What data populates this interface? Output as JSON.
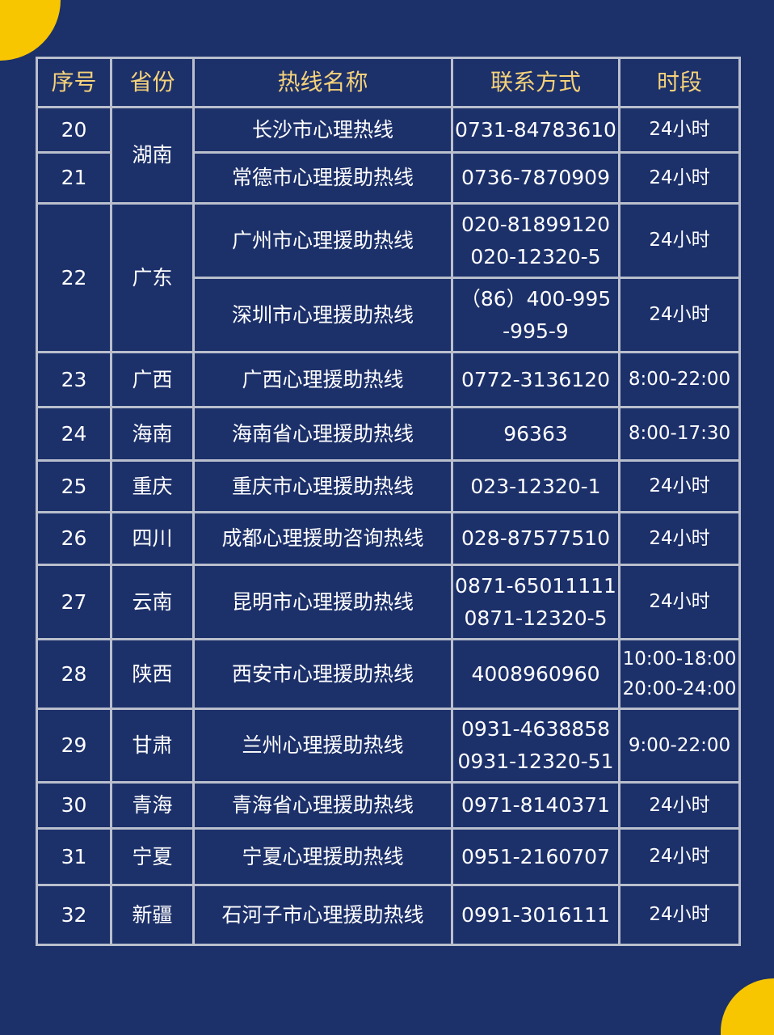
{
  "colors": {
    "background": "#1c306a",
    "header_text": "#f5d27a",
    "border": "#b9bfcc",
    "accent": "#f7c600"
  },
  "headers": [
    "序号",
    "省份",
    "热线名称",
    "联系方式",
    "时段"
  ],
  "rows": [
    {
      "seq": "20",
      "seq_span": 1,
      "province": "湖南",
      "province_span": 2,
      "name": "长沙市心理热线",
      "contact": [
        "0731-84783610"
      ],
      "hours": [
        "24小时"
      ]
    },
    {
      "seq": "21",
      "seq_span": 1,
      "name": "常德市心理援助热线",
      "contact": [
        "0736-7870909"
      ],
      "hours": [
        "24小时"
      ]
    },
    {
      "seq": "22",
      "seq_span": 2,
      "province": "广东",
      "province_span": 2,
      "name": "广州市心理援助热线",
      "contact": [
        "020-81899120",
        "020-12320-5"
      ],
      "hours": [
        "24小时"
      ]
    },
    {
      "name": "深圳市心理援助热线",
      "contact": [
        "（86）400-995",
        "-995-9"
      ],
      "hours": [
        "24小时"
      ]
    },
    {
      "seq": "23",
      "seq_span": 1,
      "province": "广西",
      "province_span": 1,
      "name": "广西心理援助热线",
      "contact": [
        "0772-3136120"
      ],
      "hours": [
        "8:00-22:00"
      ]
    },
    {
      "seq": "24",
      "seq_span": 1,
      "province": "海南",
      "province_span": 1,
      "name": "海南省心理援助热线",
      "contact": [
        "96363"
      ],
      "hours": [
        "8:00-17:30"
      ]
    },
    {
      "seq": "25",
      "seq_span": 1,
      "province": "重庆",
      "province_span": 1,
      "name": "重庆市心理援助热线",
      "contact": [
        "023-12320-1"
      ],
      "hours": [
        "24小时"
      ]
    },
    {
      "seq": "26",
      "seq_span": 1,
      "province": "四川",
      "province_span": 1,
      "name": "成都心理援助咨询热线",
      "contact": [
        "028-87577510"
      ],
      "hours": [
        "24小时"
      ]
    },
    {
      "seq": "27",
      "seq_span": 1,
      "province": "云南",
      "province_span": 1,
      "name": "昆明市心理援助热线",
      "contact": [
        "0871-65011111",
        "0871-12320-5"
      ],
      "hours": [
        "24小时"
      ]
    },
    {
      "seq": "28",
      "seq_span": 1,
      "province": "陕西",
      "province_span": 1,
      "name": "西安市心理援助热线",
      "contact": [
        "4008960960"
      ],
      "hours": [
        "10:00-18:00",
        "20:00-24:00"
      ]
    },
    {
      "seq": "29",
      "seq_span": 1,
      "province": "甘肃",
      "province_span": 1,
      "name": "兰州心理援助热线",
      "contact": [
        "0931-4638858",
        "0931-12320-51"
      ],
      "hours": [
        "9:00-22:00"
      ]
    },
    {
      "seq": "30",
      "seq_span": 1,
      "province": "青海",
      "province_span": 1,
      "name": "青海省心理援助热线",
      "contact": [
        "0971-8140371"
      ],
      "hours": [
        "24小时"
      ]
    },
    {
      "seq": "31",
      "seq_span": 1,
      "province": "宁夏",
      "province_span": 1,
      "name": "宁夏心理援助热线",
      "contact": [
        "0951-2160707"
      ],
      "hours": [
        "24小时"
      ]
    },
    {
      "seq": "32",
      "seq_span": 1,
      "province": "新疆",
      "province_span": 1,
      "name": "石河子市心理援助热线",
      "contact": [
        "0991-3016111"
      ],
      "hours": [
        "24小时"
      ]
    }
  ]
}
